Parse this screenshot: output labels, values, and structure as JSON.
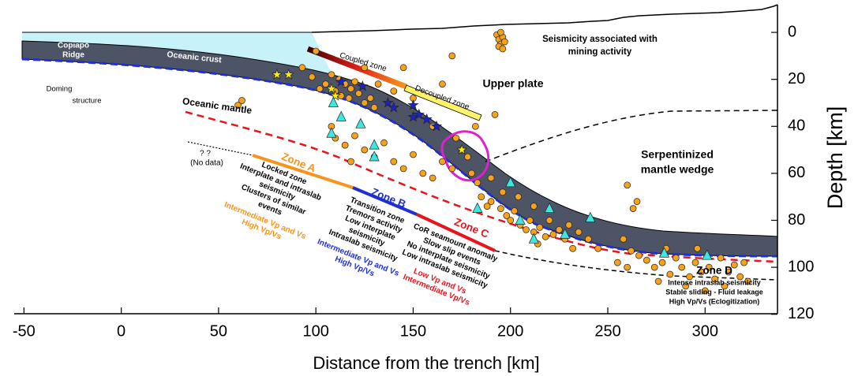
{
  "chart_data": {
    "type": "cross-section",
    "x_label": "Distance from the trench [km]",
    "y_label": "Depth [km]",
    "xlim": [
      -55,
      338
    ],
    "ylim": [
      -11,
      120
    ],
    "xticks": [
      -50,
      0,
      50,
      100,
      150,
      200,
      250,
      300
    ],
    "yticks": [
      0,
      20,
      40,
      60,
      80,
      100,
      120
    ],
    "annotations": [
      "Copiapó",
      "Ridge",
      "Doming",
      "structure",
      "Oceanic crust",
      "Coupled zone",
      "Decoupled zone",
      "Upper plate",
      "Oceanic mantle",
      "Seismicity associated with",
      "mining activity",
      "Serpentinized",
      "mantle wedge",
      "? ?",
      "(No data)"
    ],
    "zones": [
      {
        "name": "Zone A",
        "color": "#f7941d",
        "notes": [
          "Locked zone",
          "Interplate and intraslab",
          "seismicity",
          "Clusters of similar",
          "events"
        ],
        "velocity": [
          "Intermediate Vp and Vs",
          "High Vp/Vs"
        ]
      },
      {
        "name": "Zone B",
        "color": "#1f2fd0",
        "notes": [
          "Transition zone",
          "Tremors activity",
          "Low interplate",
          "seismicity",
          "Intraslab seismicity"
        ],
        "velocity": [
          "Intermediate Vp and Vs",
          "High Vp/Vs"
        ]
      },
      {
        "name": "Zone C",
        "color": "#e8141c",
        "notes": [
          "CoR seamount anomaly",
          "Slow slip events",
          "No interplate seismicity",
          "Low intraslab seismicity"
        ],
        "velocity": [
          "Low Vp and Vs",
          "Intermediate Vp/Vs"
        ]
      },
      {
        "name": "Zone D",
        "color": "#000000",
        "notes": [
          "Intense intraslab seismicity",
          "Stable sliding - Fluid leakage",
          "High Vp/Vs (Eclogitization)"
        ]
      }
    ],
    "series": [
      {
        "marker": "circle",
        "color": "#f7a21b",
        "x": [
          193,
          194,
          195,
          196,
          197,
          194,
          195,
          196,
          108,
          112,
          115,
          118,
          120,
          110,
          113,
          117,
          122,
          125,
          128,
          130,
          105,
          102,
          98,
          93,
          125,
          132,
          140,
          100,
          145,
          170,
          165,
          150,
          110,
          115,
          120,
          125,
          130,
          135,
          140,
          145,
          150,
          155,
          160,
          165,
          170,
          175,
          178,
          180,
          183,
          172,
          182,
          160,
          192,
          190,
          108,
          118,
          185,
          190,
          195,
          198,
          200,
          202,
          205,
          208,
          210,
          212,
          215,
          218,
          220,
          222,
          225,
          228,
          230,
          235,
          240,
          196,
          204,
          212,
          188,
          214,
          232,
          262,
          266,
          270,
          274,
          278,
          282,
          285,
          288,
          292,
          295,
          298,
          302,
          305,
          308,
          312,
          315,
          318,
          320,
          276,
          290,
          300,
          310,
          280,
          296,
          322,
          60,
          62,
          260,
          263,
          265,
          258,
          245,
          260,
          255
        ],
        "y": [
          1,
          3,
          5,
          2,
          4,
          6,
          0,
          7,
          18,
          20,
          22,
          24,
          21,
          25,
          27,
          28,
          26,
          30,
          28,
          32,
          22,
          24,
          19,
          15,
          15,
          22,
          25,
          8,
          15,
          10,
          22,
          28,
          45,
          48,
          44,
          50,
          53,
          47,
          55,
          58,
          52,
          60,
          62,
          55,
          58,
          50,
          53,
          60,
          64,
          45,
          40,
          40,
          35,
          62,
          40,
          55,
          70,
          72,
          75,
          78,
          80,
          76,
          82,
          84,
          80,
          85,
          83,
          87,
          80,
          86,
          84,
          88,
          82,
          85,
          88,
          68,
          70,
          74,
          74,
          90,
          92,
          93,
          95,
          97,
          100,
          98,
          103,
          96,
          100,
          104,
          98,
          102,
          100,
          105,
          96,
          102,
          99,
          104,
          98,
          106,
          108,
          110,
          108,
          92,
          92,
          106,
          31,
          29,
          65,
          75,
          72,
          88,
          92,
          100,
          98
        ]
      },
      {
        "marker": "star",
        "color": "#ffee00",
        "x": [
          80,
          86,
          108,
          110,
          175
        ],
        "y": [
          18,
          18,
          24,
          27,
          50
        ]
      },
      {
        "marker": "star",
        "color": "#1a22c8",
        "x": [
          113,
          124,
          137,
          140,
          150,
          153,
          157,
          162,
          150
        ],
        "y": [
          21,
          23,
          30,
          32,
          31,
          35,
          37,
          40,
          36
        ]
      },
      {
        "marker": "triangle",
        "color": "#3ee6e0",
        "x": [
          109,
          113,
          123,
          108,
          130,
          130,
          200,
          220,
          241,
          228,
          205,
          212,
          279,
          301,
          183
        ],
        "y": [
          30,
          36,
          39,
          43,
          48,
          53,
          64,
          75,
          79,
          86,
          80,
          88,
          94,
          95,
          75
        ]
      }
    ]
  }
}
